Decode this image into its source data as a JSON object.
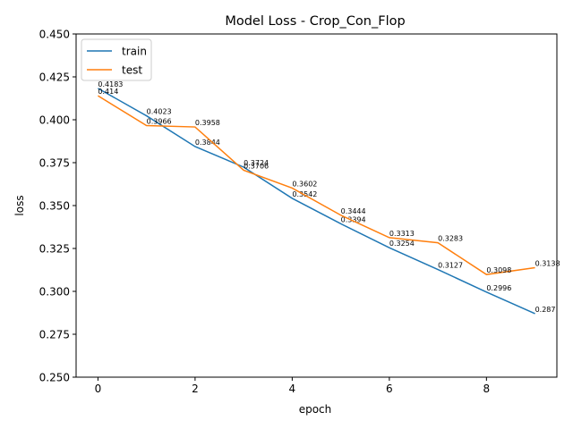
{
  "chart_data": {
    "type": "line",
    "title": "Model Loss - Crop_Con_Flop",
    "xlabel": "epoch",
    "ylabel": "loss",
    "x": [
      0,
      1,
      2,
      3,
      4,
      5,
      6,
      7,
      8,
      9
    ],
    "xlim": [
      -0.45,
      9.45
    ],
    "ylim": [
      0.25,
      0.45
    ],
    "x_ticks": [
      0,
      2,
      4,
      6,
      8
    ],
    "x_tick_labels": [
      "0",
      "2",
      "4",
      "6",
      "8"
    ],
    "y_ticks": [
      0.25,
      0.275,
      0.3,
      0.325,
      0.35,
      0.375,
      0.4,
      0.425,
      0.45
    ],
    "y_tick_labels": [
      "0.250",
      "0.275",
      "0.300",
      "0.325",
      "0.350",
      "0.375",
      "0.400",
      "0.425",
      "0.450"
    ],
    "grid": false,
    "legend_position": "top-left",
    "series": [
      {
        "name": "train",
        "color": "#1f77b4",
        "values": [
          0.4183,
          0.4023,
          0.3844,
          0.3724,
          0.3542,
          0.3394,
          0.3254,
          0.3127,
          0.2996,
          0.287
        ],
        "labels": [
          "0.4183",
          "0.4023",
          "0.3844",
          "0.3724",
          "0.3542",
          "0.3394",
          "0.3254",
          "0.3127",
          "0.2996",
          "0.287"
        ]
      },
      {
        "name": "test",
        "color": "#ff7f0e",
        "values": [
          0.414,
          0.3966,
          0.3958,
          0.3706,
          0.3602,
          0.3444,
          0.3313,
          0.3283,
          0.3098,
          0.3138
        ],
        "labels": [
          "0.414",
          "0.3966",
          "0.3958",
          "0.3706",
          "0.3602",
          "0.3444",
          "0.3313",
          "0.3283",
          "0.3098",
          "0.3138"
        ]
      }
    ]
  }
}
